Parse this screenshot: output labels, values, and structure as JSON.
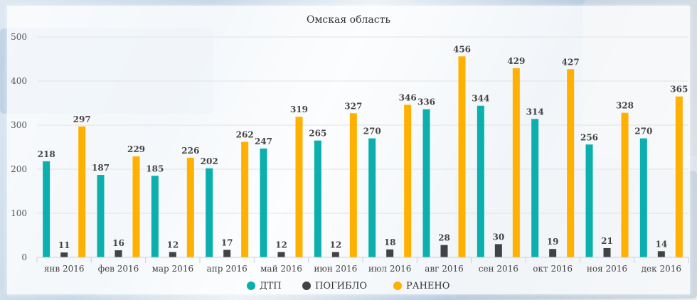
{
  "chart_data": {
    "type": "bar",
    "title": "Омская область",
    "categories": [
      "янв 2016",
      "фев 2016",
      "мар 2016",
      "апр 2016",
      "май 2016",
      "июн 2016",
      "июл 2016",
      "авг 2016",
      "сен 2016",
      "окт 2016",
      "ноя 2016",
      "дек 2016"
    ],
    "series": [
      {
        "name": "ДТП",
        "color": "#0aafae",
        "values": [
          218,
          187,
          185,
          202,
          247,
          265,
          270,
          336,
          344,
          314,
          256,
          270
        ]
      },
      {
        "name": "ПОГИБЛО",
        "color": "#404244",
        "values": [
          11,
          16,
          12,
          17,
          12,
          12,
          18,
          28,
          30,
          19,
          21,
          14
        ]
      },
      {
        "name": "РАНЕНО",
        "color": "#ffb000",
        "values": [
          297,
          229,
          226,
          262,
          319,
          327,
          346,
          456,
          429,
          427,
          328,
          365
        ]
      }
    ],
    "yticks": [
      0,
      100,
      200,
      300,
      400,
      500
    ],
    "ylim": [
      0,
      500
    ],
    "grid": true,
    "legend_position": "bottom-center"
  }
}
